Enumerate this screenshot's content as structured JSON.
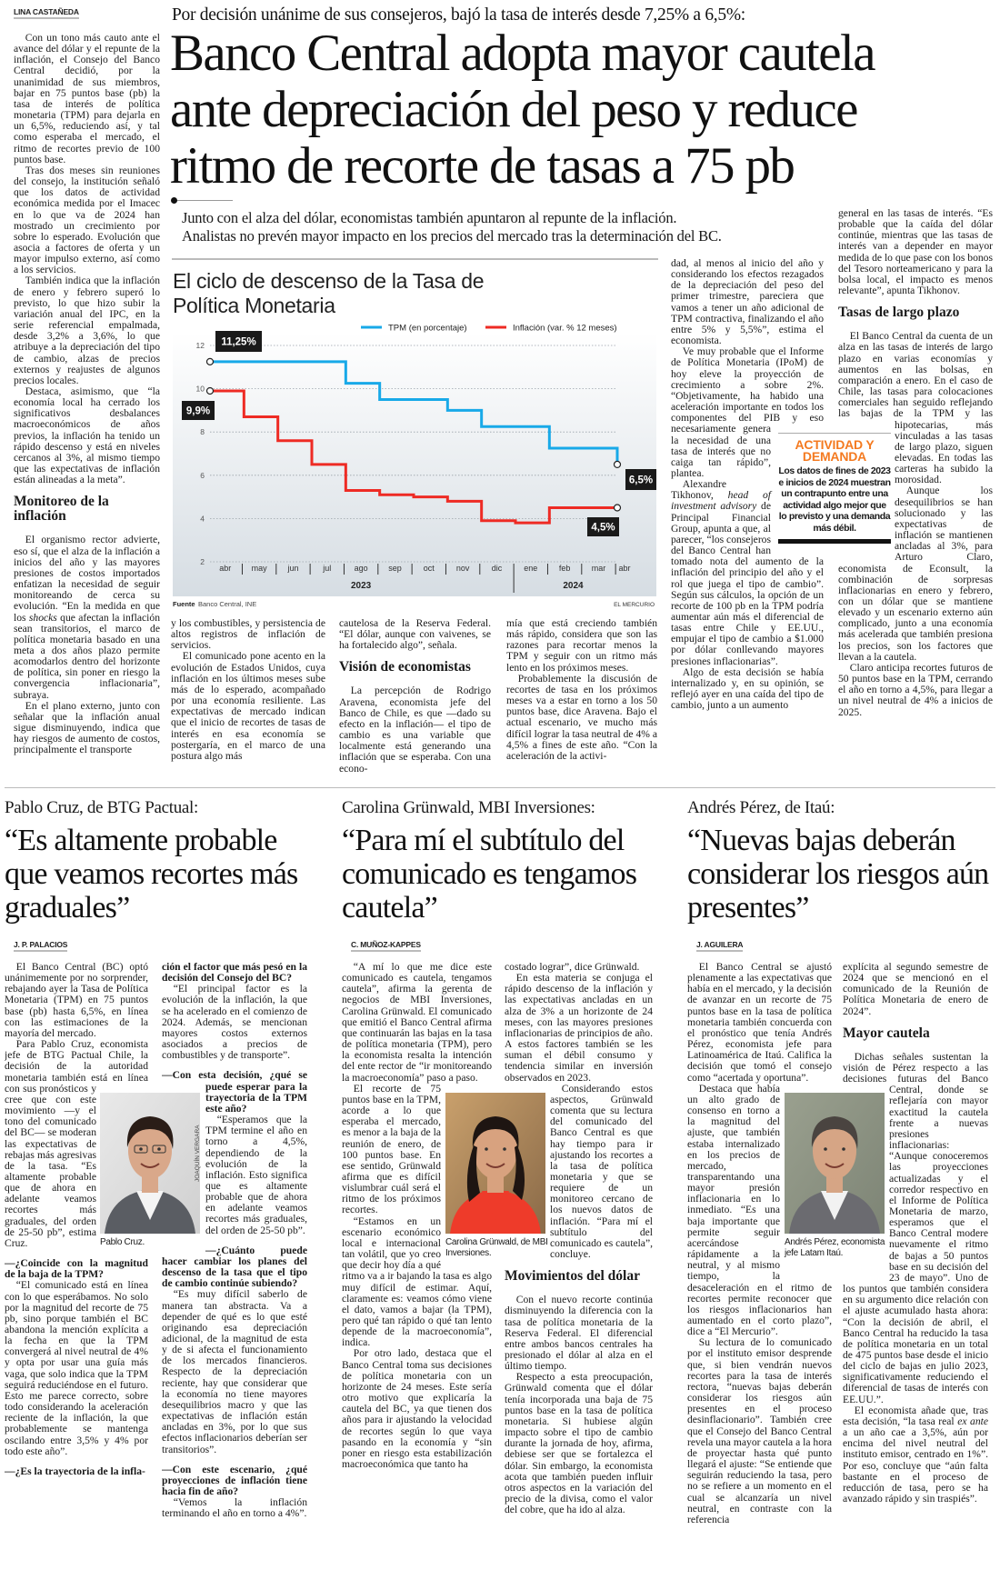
{
  "header": {
    "kicker": "Por decisión unánime de sus consejeros, bajó la tasa de interés desde 7,25% a 6,5%:",
    "headline_lines": [
      "Banco Central adopta mayor cautela",
      "ante depreciación del peso y reduce",
      "ritmo de recorte de tasas a 75 pb"
    ],
    "deck_lines": [
      "Junto con el alza del dólar, economistas también apuntaron al repunte de la inflación.",
      "Analistas no prevén mayor impacto en los precios del mercado tras la determinación del BC."
    ]
  },
  "main_article": {
    "byline": "LINA CASTAÑEDA",
    "columns": {
      "left": [
        {
          "p": "Con un tono más cauto ante el avance del dólar y el repunte de la inflación, el Consejo del Banco Central decidió, por la unanimidad de sus miembros, bajar en 75 puntos base (pb) la tasa de interés de política monetaria (TPM) para dejarla en un 6,5%, reduciendo así, y tal como esperaba el mercado, el ritmo de recortes previo de 100 puntos base."
        },
        {
          "p": "Tras dos meses sin reuniones del consejo, la institución señaló que los datos de actividad económica medida por el Imacec en lo que va de 2024 han mostrado un crecimiento por sobre lo esperado. Evolución que asocia a factores de oferta y un mayor impulso externo, así como a los servicios."
        },
        {
          "p": "También indica que la inflación de enero y febrero superó lo previsto, lo que hizo subir la variación anual del IPC, en la serie referencial empalmada, desde 3,2% a 3,6%, lo que atribuye a la depreciación del tipo de cambio, alzas de precios externos y reajustes de algunos precios locales."
        },
        {
          "p": "Destaca, asimismo, que “la economía local ha cerrado los significativos desbalances macroeconómicos de años previos, la inflación ha tenido un rápido descenso y está en niveles cercanos al 3%, al mismo tiempo que las expectativas de inflación están alineadas a la meta”."
        },
        {
          "h": "Monitoreo de la inflación"
        },
        {
          "p": [
            "El organismo rector advierte, eso sí, que el alza de la inflación a inicios del año y las mayores presiones de costos importados enfatizan la necesidad de seguir monitoreando de cerca su evolución. “En la medida en que los ",
            {
              "em": "shocks"
            },
            " que afectan la inflación sean transitorios, el marco de política monetaria basado en una meta a dos años plazo permite acomodarlos dentro del horizonte de política, sin poner en riesgo la convergencia inflacionaria”, subraya."
          ]
        },
        {
          "p": "En el plano externo, junto con señalar que la inflación anual sigue disminuyendo, indica que hay riesgos de aumento de costos, principalmente el transporte"
        }
      ],
      "a": [
        {
          "c": "y los combustibles, y persistencia de altos registros de inflación de servicios."
        },
        {
          "p": "El comunicado pone acento en la evolución de Estados Unidos, cuya inflación en los últimos meses sube más de lo esperado, acompañado por una economía resiliente. Las expectativas de mercado indican que el inicio de recortes de tasas de interés en esa economía se postergaría, en el marco de una postura algo más"
        }
      ],
      "b": [
        {
          "c": "cautelosa de la Reserva Federal. “El dólar, aunque con vaivenes, se ha fortalecido algo”, señala."
        },
        {
          "h": "Visión de economistas"
        },
        {
          "p": "La percepción de Rodrigo Aravena, economista jefe del Banco de Chile, es que —dado su efecto en la inflación— el tipo de cambio es una variable que localmente está generando una inflación que se esperaba. Con una econo-"
        }
      ],
      "c": [
        {
          "c": "mía que está creciendo también más rápido, considera que son las razones para recortar menos la TPM y seguir con un ritmo más lento en los próximos meses."
        },
        {
          "p": "Probablemente la discusión de recortes de tasa en los próximos meses va a estar en torno a los 50 puntos base, dice Aravena. Bajo el actual escenario, ve mucho más difícil lograr la tasa neutral de 4% a 4,5% a fines de este año. “Con la aceleración de la activi-"
        }
      ],
      "d": [
        {
          "c": "dad, al menos al inicio del año y considerando los efectos rezagados de la depreciación del peso del primer trimestre, pareciera que vamos a tener un año adicional de TPM contractiva, finalizando el año entre 5% y 5,5%”, estima el economista."
        },
        {
          "p": "Ve muy probable que el Informe de Política Monetaria (IPoM) de hoy eleve la proyección de crecimiento a sobre 2%. “Objetivamente, ha habido una aceleración importante en todos los componentes del PIB y eso necesariamente genera la necesidad de una tasa de interés que no caiga tan rápido”, plantea."
        },
        {
          "p": [
            "Alexandre Tikhonov, ",
            {
              "em": "head of investment advisory"
            },
            " de Principal Financial Group, apunta a que, al parecer, “los consejeros del Banco Central han tomado nota del aumento de la inflación del principio del año y el rol que juega el tipo de cambio”. Según sus cálculos, la opción de un recorte de 100 pb en la TPM podría aumentar aún más el diferencial de tasas entre Chile y EE.UU., empujar el tipo de cambio a $1.000 por dólar conllevando mayores presiones inflacionarias”."
          ]
        },
        {
          "p": "Algo de esta decisión se había internalizado y, en su opinión, se reflejó ayer en una caída del tipo de cambio, junto a un aumento"
        }
      ],
      "e": [
        {
          "c": "general en las tasas de interés. “Es probable que la caída del dólar continúe, mientras que las tasas de interés van a depender en mayor medida de lo que pase con los bonos del Tesoro norteamericano y para la bolsa local, el impacto es menos relevante”, apunta Tikhonov."
        },
        {
          "h": "Tasas de largo plazo"
        },
        {
          "p": "El Banco Central da cuenta de un alza en las tasas de interés de largo plazo en varias economías y aumentos en las bolsas, en comparación a enero. En el caso de Chile, las tasas para colocaciones comerciales han seguido reflejando las bajas de la TPM y las hipotecarias, más vinculadas a las tasas de largo plazo, siguen elevadas. En todas las carteras ha subido la morosidad."
        },
        {
          "p": "Aunque los desequilibrios se han solucionado y las expectativas de inflación se mantienen ancladas al 3%, para Arturo Claro, economista de Econsult, la combinación de sorpresas inflacionarias en enero y febrero, con un dólar que se mantiene elevado y un escenario externo aún complicado, junto a una economía más acelerada que también presiona los precios, son los factores que llevan a la cautela."
        },
        {
          "p": "Claro anticipa recortes futuros de 50 puntos base en la TPM, cerrando el año en torno a 4,5%, para llegar a un nivel neutral de 4% a inicios de 2025."
        }
      ]
    }
  },
  "callout": {
    "title_lines": [
      "ACTIVIDAD Y",
      "DEMANDA"
    ],
    "text": "Los datos de fines de 2023 e inicios de 2024 muestran un contrapunto entre una actividad algo mejor que lo previsto y una demanda más débil."
  },
  "chart_data": {
    "type": "line",
    "title": "El ciclo de descenso de la Tasa de Política Monetaria",
    "x_categories": [
      "abr",
      "may",
      "jun",
      "jul",
      "ago",
      "sep",
      "oct",
      "nov",
      "dic",
      "ene",
      "feb",
      "mar",
      "abr"
    ],
    "x_years": [
      "2023",
      "2024"
    ],
    "ylim": [
      2,
      12
    ],
    "yticks": [
      2,
      4,
      6,
      8,
      10,
      12
    ],
    "grid": true,
    "legend": "top-right",
    "step": true,
    "series": [
      {
        "name": "TPM (en porcentaje)",
        "color": "#18a9e8",
        "values": [
          11.25,
          11.25,
          11.25,
          11.25,
          10.25,
          9.5,
          9.5,
          9.0,
          8.25,
          8.25,
          7.25,
          7.25,
          6.5
        ]
      },
      {
        "name": "Inflación (var. % 12 meses)",
        "color": "#ee2b24",
        "values": [
          9.9,
          8.7,
          7.6,
          6.5,
          5.3,
          5.1,
          5.0,
          4.8,
          3.9,
          3.8,
          4.5,
          4.5,
          4.5
        ]
      }
    ],
    "annotations": [
      {
        "label": "11,25%",
        "series": 0,
        "point": "start"
      },
      {
        "label": "9,9%",
        "series": 1,
        "point": "start"
      },
      {
        "label": "6,5%",
        "series": 0,
        "point": "end"
      },
      {
        "label": "4,5%",
        "series": 1,
        "point": "end"
      }
    ],
    "source_label": "Fuente",
    "source": "Banco Central, INE",
    "credit": "EL MERCURIO"
  },
  "interviews": [
    {
      "kicker": "Pablo Cruz, de BTG Pactual:",
      "quote": "“Es altamente probable que veamos recortes más graduales”",
      "byline": "J. P. PALACIOS",
      "photo_caption": "Pablo Cruz.",
      "photo_credit": "JOAQUÍN VERGARA",
      "columns": [
        [
          {
            "p": "El Banco Central (BC) optó unánimemente por no sorprender, rebajando ayer la Tasa de Política Monetaria (TPM) en 75 puntos base (pb) hasta 6,5%, en línea con las estimaciones de la mayoría del mercado."
          },
          {
            "p": "Para Pablo Cruz, economista jefe de BTG Pactual Chile, la decisión de la autoridad monetaria también está en línea con sus pronósticos y cree que con este movimiento —y el tono del comunicado del BC— se moderan las expectativas de rebajas más agresivas de la tasa. “Es altamente probable que de ahora en adelante veamos recortes más graduales, del orden de 25-50 pb”, estima Cruz."
          },
          {
            "q": "—¿Coincide con la magnitud de la baja de la TPM?"
          },
          {
            "p": "“El comunicado está en línea con lo que esperábamos. No solo por la magnitud del recorte de 75 pb, sino porque también el BC abandona la mención explícita a la fecha en que la TPM convergerá al nivel neutral de 4% y opta por usar una guía más vaga, que solo indica que la TPM seguirá reduciéndose en el futuro. Esto me parece correcto, sobre todo considerando la aceleración reciente de la inflación, la que probablemente se mantenga oscilando entre 3,5% y 4% por todo este año”."
          },
          {
            "q": "—¿Es la trayectoria de la infla-"
          }
        ],
        [
          {
            "qc": "ción el factor que más pesó en la decisión del Consejo del BC?"
          },
          {
            "p": "“El principal factor es la evolución de la inflación, la que se ha acelerado en el comienzo de 2024. Además, se mencionan mayores costos externos asociados a precios de combustibles y de transporte”."
          },
          {
            "q": "—Con esta decisión, ¿qué se puede esperar para la trayectoria de la TPM este año?"
          },
          {
            "p": "“Esperamos que la TPM termine el año en torno a 4,5%, dependiendo de la evolución de la inflación. Esto significa que es altamente probable que de ahora en adelante veamos recortes más graduales, del orden de 25-50 pb”."
          },
          {
            "q": "—¿Cuánto puede hacer cambiar los planes del descenso de la tasa que el tipo de cambio continúe subiendo?"
          },
          {
            "p": "“Es muy difícil saberlo de manera tan abstracta. Va a depender de qué es lo que esté originando esa depreciación adicional, de la magnitud de esta y de si afecta el funcionamiento de los mercados financieros. Respecto de la depreciación reciente, hay que considerar que la economía no tiene mayores desequilibrios macro y que las expectativas de inflación están ancladas en 3%, por lo que sus efectos inflacionarios deberían ser transitorios”."
          },
          {
            "q": "—Con este escenario, ¿qué proyecciones de inflación tiene hacia fin de año?"
          },
          {
            "p": "“Vemos la inflación terminando el año en torno a 4%”."
          }
        ]
      ]
    },
    {
      "kicker": "Carolina Grünwald, MBI Inversiones:",
      "quote": "“Para mí el subtítulo del comunicado es tengamos cautela”",
      "byline": "C. MUÑOZ-KAPPES",
      "photo_caption": "Carolina Grünwald, de MBI Inversiones.",
      "columns": [
        [
          {
            "p": "“A mí lo que me dice este comunicado es cautela, tengamos cautela”, afirma la gerenta de negocios de MBI Inversiones, Carolina Grünwald. El comunicado que emitió el Banco Central afirma que continuarán las bajas en la tasa de política monetaria (TPM), pero la economista resalta la intención del ente rector de “ir monitoreando la macroeconomía” paso a paso."
          },
          {
            "p": "El recorte de 75 puntos base en la TPM, acorde a lo que esperaba el mercado, es menor a la baja de la reunión de enero, de 100 puntos base. En ese sentido, Grünwald afirma que es difícil vislumbrar cuál será el ritmo de los próximos recortes."
          },
          {
            "p": "“Estamos en un escenario económico local e internacional tan volátil, que yo creo que decir hoy día a qué ritmo va a ir bajando la tasa es algo muy difícil de estimar. Aquí, claramente es: veamos cómo viene el dato, vamos a bajar (la TPM), pero qué tan rápido o qué tan lento depende de la macroeconomía”, indica."
          },
          {
            "p": "Por otro lado, destaca que el Banco Central toma sus decisiones de política monetaria con un horizonte de 24 meses. Este sería otro motivo que explicaría la cautela del BC, ya que tienen dos años para ir ajustando la velocidad de recortes según lo que vaya pasando en la economía y “sin poner en riesgo esta estabilización macroeconómica que tanto ha"
          }
        ],
        [
          {
            "c": "costado lograr”, dice Grünwald."
          },
          {
            "p": "En esta materia se conjuga el rápido descenso de la inflación y las expectativas ancladas en un alza de 3% a un horizonte de 24 meses, con las mayores presiones inflacionarias de principios de año. A estos factores también se les suman el débil consumo y tendencia similar en inversión observados en 2023."
          },
          {
            "p": "Considerando estos aspectos, Grünwald comenta que su lectura del comunicado del Banco Central es que hay tiempo para ir ajustando los recortes a la tasa de política monetaria y que se requiere de un monitoreo cercano de los nuevos datos de inflación. “Para mí el subtítulo del comunicado es cautela”, concluye."
          },
          {
            "h": "Movimientos del dólar"
          },
          {
            "p": "Con el nuevo recorte continúa disminuyendo la diferencia con la tasa de política monetaria de la Reserva Federal. El diferencial entre ambos bancos centrales ha presionado el dólar al alza en el último tiempo."
          },
          {
            "p": "Respecto a esta preocupación, Grünwald comenta que el dólar tenía incorporada una baja de 75 puntos base en la tasa de política monetaria. Si hubiese algún impacto sobre el tipo de cambio durante la jornada de hoy, afirma, debiese ser que se fortalezca el dólar. Sin embargo, la economista acota que también pueden influir otros aspectos en la variación del precio de la divisa, como el valor del cobre, que ha ido al alza."
          }
        ]
      ]
    },
    {
      "kicker": "Andrés Pérez, de Itaú:",
      "quote": "“Nuevas bajas deberán considerar los riesgos aún presentes”",
      "byline": "J. AGUILERA",
      "photo_caption": "Andrés Pérez, economista jefe Latam Itaú.",
      "columns": [
        [
          {
            "p": "El Banco Central se ajustó plenamente a las expectativas que había en el mercado, y la decisión de avanzar en un recorte de 75 puntos base en la tasa de política monetaria también concuerda con el pronóstico que tenía Andrés Pérez, economista jefe para Latinoamérica de Itaú. Califica la decisión que tomó el consejo como “acertada y oportuna”."
          },
          {
            "p": "Destaca que había un alto grado de consenso en torno a la magnitud del ajuste, que también estaba internalizado en los precios de mercado, transparentando una mayor presión inflacionaria en lo inmediato. “Es una baja importante que permite seguir acercándose rápidamente a la neutral, y al mismo tiempo, la desaceleración en el ritmo de recortes permite reconocer que los riesgos inflacionarios han aumentado en el corto plazo”, dice a “El Mercurio”."
          },
          {
            "p": "Su lectura de lo comunicado por el instituto emisor desprende que, si bien vendrán nuevos recortes para la tasa de interés rectora, “nuevas bajas deberán considerar los riesgos aún presentes en el proceso desinflacionario”. También cree que el Consejo del Banco Central revela una mayor cautela a la hora de proyectar hasta qué punto llegará el ajuste: “Se entiende que seguirán reduciendo la tasa, pero no se refiere a un momento en el cual se alcanzaría un nivel neutral, en contraste con la referencia"
          }
        ],
        [
          {
            "c": "explícita al segundo semestre de 2024 que se mencionó en el comunicado de la Reunión de Política Monetaria de enero de 2024”."
          },
          {
            "h": "Mayor cautela"
          },
          {
            "p": "Dichas señales sustentan la visión de Pérez respecto a las decisiones futuras del Banco Central, donde se reflejaría con mayor exactitud la cautela frente a nuevas presiones inflacionarias: “Aunque conoceremos las proyecciones actualizadas y el corredor respectivo en el Informe de Política Monetaria de marzo, esperamos que el Banco Central modere nuevamente el ritmo de bajas a 50 puntos base en su decisión del 23 de mayo”. Uno de los puntos que también considera en su argumento dice relación con el ajuste acumulado hasta ahora: “Con la decisión de abril, el Banco Central ha reducido la tasa de política monetaria en un total de 475 puntos base desde el inicio del ciclo de bajas en julio 2023, significativamente reduciendo el diferencial de tasas de interés con EE.UU.”."
          },
          {
            "p": [
              "El economista añade que, tras esta decisión, “la tasa real ",
              {
                "em": "ex ante"
              },
              " a un año cae a 3,5%, aún por encima del nivel neutral del instituto emisor, centrado en 1%”. Por eso, concluye que “aún falta bastante en el proceso de reducción de tasa, pero se ha avanzado rápido y sin traspiés”."
            ]
          }
        ]
      ]
    }
  ],
  "colors": {
    "accent_orange": "#f47a20",
    "tpm_blue": "#18a9e8",
    "inflation_red": "#ee2b24"
  }
}
